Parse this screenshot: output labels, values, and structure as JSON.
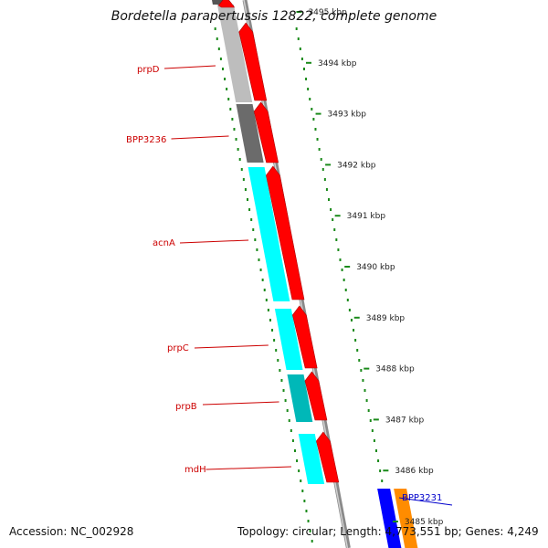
{
  "title": "Bordetella parapertussis 12822, complete genome",
  "accession": "Accession: NC_002928",
  "summary": "Topology: circular; Length: 4,773,551 bp; Genes: 4,249",
  "colors": {
    "forward_gene": "#ff0000",
    "label_red": "#cc0000",
    "label_blue": "#0000cc",
    "tick_green": "#1a8a1a",
    "cyan": "#00ffff",
    "dark_cyan": "#00b8b8",
    "light_gray": "#bdbdbd",
    "dark_gray": "#6b6b6b",
    "blue": "#0000ff",
    "orange": "#ff8c00"
  },
  "ticks": [
    {
      "label": "3495 kbp",
      "kbp": 3495
    },
    {
      "label": "3494 kbp",
      "kbp": 3494
    },
    {
      "label": "3493 kbp",
      "kbp": 3493
    },
    {
      "label": "3492 kbp",
      "kbp": 3492
    },
    {
      "label": "3491 kbp",
      "kbp": 3491
    },
    {
      "label": "3490 kbp",
      "kbp": 3490
    },
    {
      "label": "3489 kbp",
      "kbp": 3489
    },
    {
      "label": "3488 kbp",
      "kbp": 3488
    },
    {
      "label": "3487 kbp",
      "kbp": 3487
    },
    {
      "label": "3486 kbp",
      "kbp": 3486
    },
    {
      "label": "3485 kbp",
      "kbp": 3485
    }
  ],
  "gene_labels": [
    {
      "name": "prpD",
      "color": "label_red"
    },
    {
      "name": "BPP3236",
      "color": "label_red"
    },
    {
      "name": "acnA",
      "color": "label_red"
    },
    {
      "name": "prpC",
      "color": "label_red"
    },
    {
      "name": "prpB",
      "color": "label_red"
    },
    {
      "name": "mdH",
      "color": "label_red"
    },
    {
      "name": "BPP3231",
      "color": "label_blue"
    }
  ]
}
